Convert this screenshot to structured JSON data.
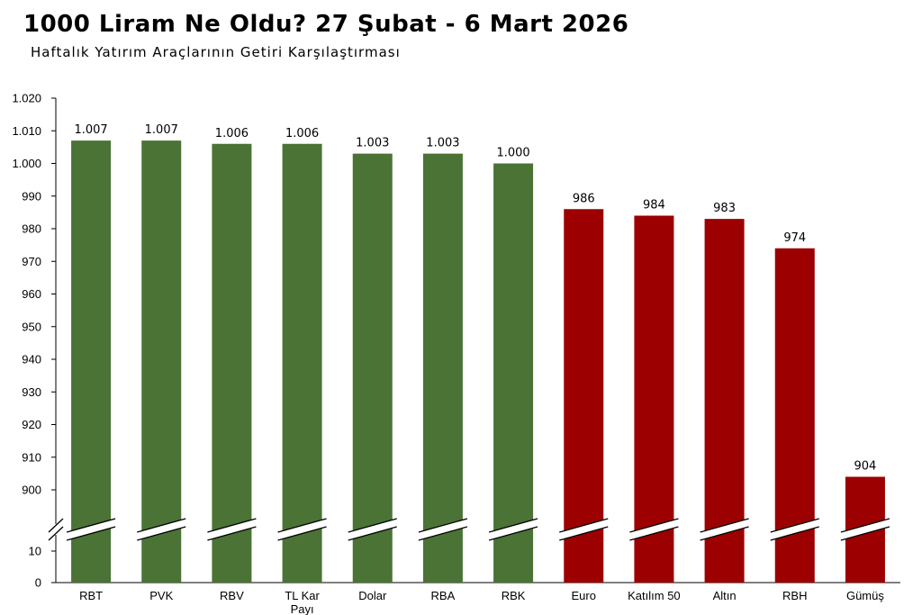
{
  "header": {
    "title": "1000 Liram Ne Oldu? 27 Şubat - 6 Mart 2026",
    "subtitle": "Haftalık Yatırım Araçlarının Getiri Karşılaştırması"
  },
  "chart_data": {
    "type": "bar",
    "title": "1000 Liram Ne Oldu? 27 Şubat - 6 Mart 2026",
    "subtitle": "Haftalık Yatırım Araçlarının Getiri Karşılaştırması",
    "categories": [
      "RBT",
      "PVK",
      "RBV",
      "TL Kar Payı",
      "Dolar",
      "RBA",
      "RBK",
      "Euro",
      "Katılım 50",
      "Altın",
      "RBH",
      "Gümüş"
    ],
    "category_lines": [
      [
        "RBT"
      ],
      [
        "PVK"
      ],
      [
        "RBV"
      ],
      [
        "TL Kar",
        "Payı"
      ],
      [
        "Dolar"
      ],
      [
        "RBA"
      ],
      [
        "RBK"
      ],
      [
        "Euro"
      ],
      [
        "Katılım 50"
      ],
      [
        "Altın"
      ],
      [
        "RBH"
      ],
      [
        "Gümüş"
      ]
    ],
    "values": [
      1007,
      1007,
      1006,
      1006,
      1003,
      1003,
      1000,
      986,
      984,
      983,
      974,
      904
    ],
    "value_labels": [
      "1.007",
      "1.007",
      "1.006",
      "1.006",
      "1.003",
      "1.003",
      "1.000",
      "986",
      "984",
      "983",
      "974",
      "904"
    ],
    "y_ticks_upper": [
      "900",
      "910",
      "920",
      "930",
      "940",
      "950",
      "960",
      "970",
      "980",
      "990",
      "1.000",
      "1.010",
      "1.020"
    ],
    "y_ticks_lower": [
      "0",
      "10"
    ],
    "ylim": [
      0,
      1020
    ],
    "axis_break": [
      10,
      900
    ],
    "colors": {
      "gain": "#4a7335",
      "loss": "#9c0000"
    },
    "threshold": 1000,
    "grid": false,
    "legend": "none"
  }
}
